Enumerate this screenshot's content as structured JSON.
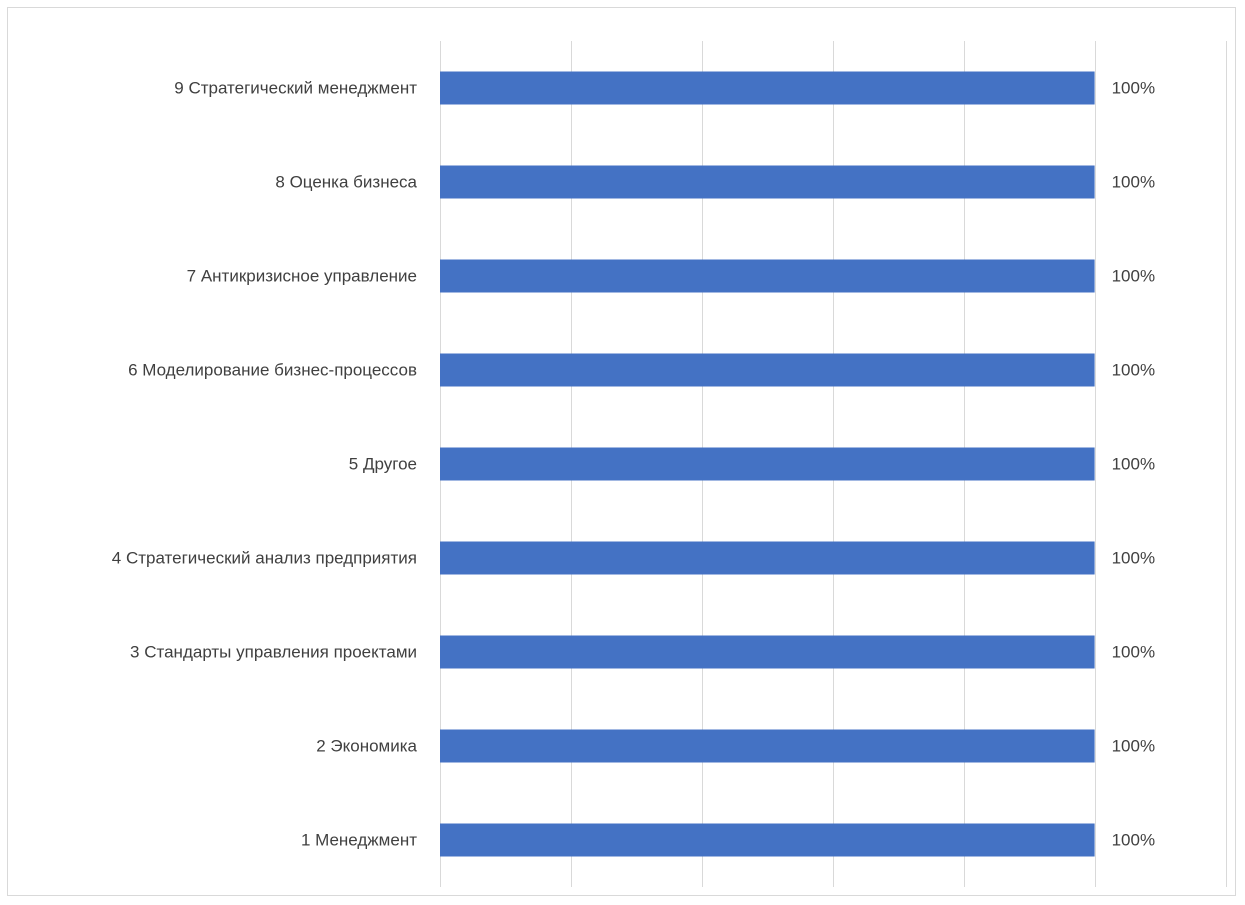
{
  "chart_data": {
    "type": "bar",
    "orientation": "horizontal",
    "categories": [
      "9 Стратегический менеджмент",
      "8 Оценка бизнеса",
      "7 Антикризисное управление",
      "6 Моделирование бизнес-процессов",
      "5 Другое",
      "4 Стратегический анализ предприятия",
      "3 Стандарты управления проектами",
      "2 Экономика",
      "1 Менеджмент"
    ],
    "values": [
      100,
      100,
      100,
      100,
      100,
      100,
      100,
      100,
      100
    ],
    "data_labels": [
      "100%",
      "100%",
      "100%",
      "100%",
      "100%",
      "100%",
      "100%",
      "100%",
      "100%"
    ],
    "xlim": [
      0,
      120
    ],
    "x_gridline_step": 20,
    "x_tick_labels_visible": false,
    "grid": true,
    "legend": "none",
    "bar_color": "#4472C4",
    "gridline_color": "#D9D9D9",
    "label_color": "#404040"
  }
}
